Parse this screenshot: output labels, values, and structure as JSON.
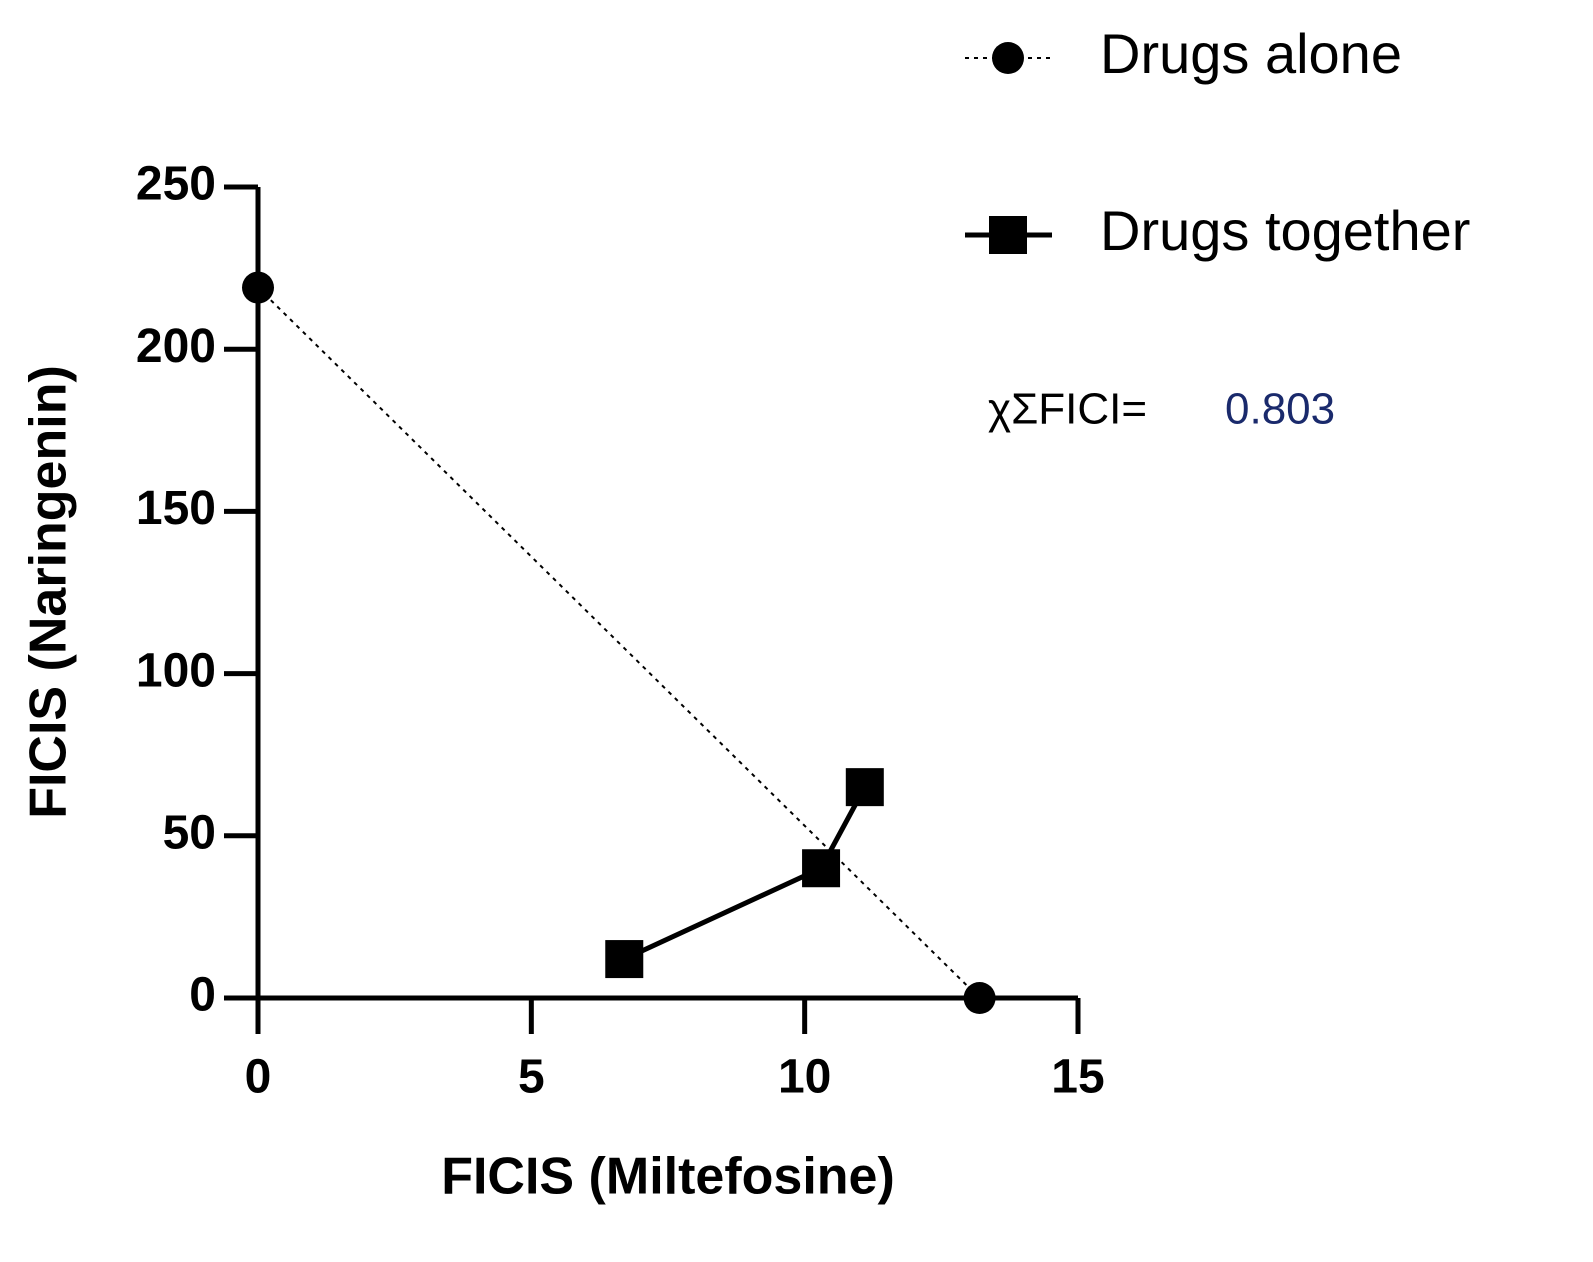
{
  "chart_data": {
    "type": "line",
    "xlabel": "FICIS (Miltefosine)",
    "ylabel": "FICIS (Naringenin)",
    "annotations": [
      "χΣFICI=",
      "0.803"
    ],
    "xlim": [
      0,
      15
    ],
    "xticks": [
      0,
      5,
      10,
      15
    ],
    "ylim": [
      0,
      250
    ],
    "yticks": [
      0,
      50,
      100,
      150,
      200,
      250
    ],
    "grid": false,
    "legend": "top-right",
    "series": [
      {
        "name": "Drugs alone",
        "color": "#000000",
        "line": "dotted",
        "marker": "circle",
        "x": [
          0,
          13.2
        ],
        "values": [
          219,
          0
        ]
      },
      {
        "name": "Drugs together",
        "color": "#000000",
        "line": "solid",
        "marker": "square",
        "x": [
          6.7,
          10.3,
          11.1
        ],
        "values": [
          12,
          40,
          65
        ]
      }
    ]
  }
}
